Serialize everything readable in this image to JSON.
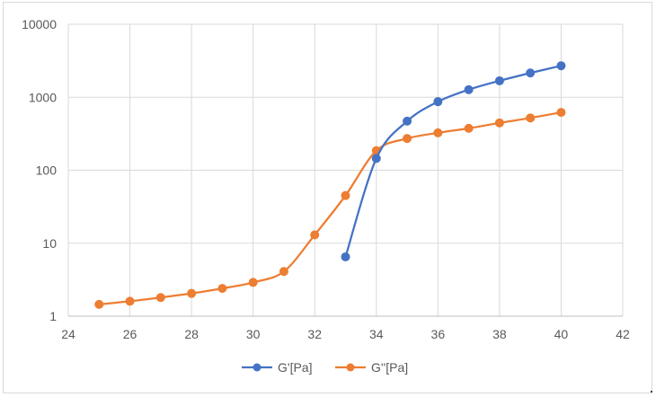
{
  "chart_data": {
    "type": "scatter",
    "title": "",
    "xlabel": "",
    "ylabel": "",
    "xlim": [
      24,
      42
    ],
    "ylim": [
      1,
      10000
    ],
    "yscale": "log",
    "grid": true,
    "legend_position": "bottom",
    "x_ticks": [
      "24",
      "26",
      "28",
      "30",
      "32",
      "34",
      "36",
      "38",
      "40",
      "42"
    ],
    "y_ticks": [
      "1",
      "10",
      "100",
      "1000",
      "10000"
    ],
    "series": [
      {
        "name": "G'[Pa]",
        "color": "#4472c4",
        "x": [
          33,
          34,
          35,
          36,
          37,
          38,
          39,
          40
        ],
        "values": [
          6.5,
          145,
          470,
          870,
          1270,
          1680,
          2150,
          2700
        ]
      },
      {
        "name": "G''[Pa]",
        "color": "#ed7d31",
        "x": [
          25,
          26,
          27,
          28,
          29,
          30,
          31,
          32,
          33,
          34,
          35,
          36,
          37,
          38,
          39,
          40
        ],
        "values": [
          1.45,
          1.6,
          1.8,
          2.05,
          2.4,
          2.9,
          4.1,
          13,
          45,
          185,
          272,
          325,
          375,
          445,
          520,
          620
        ]
      }
    ]
  }
}
